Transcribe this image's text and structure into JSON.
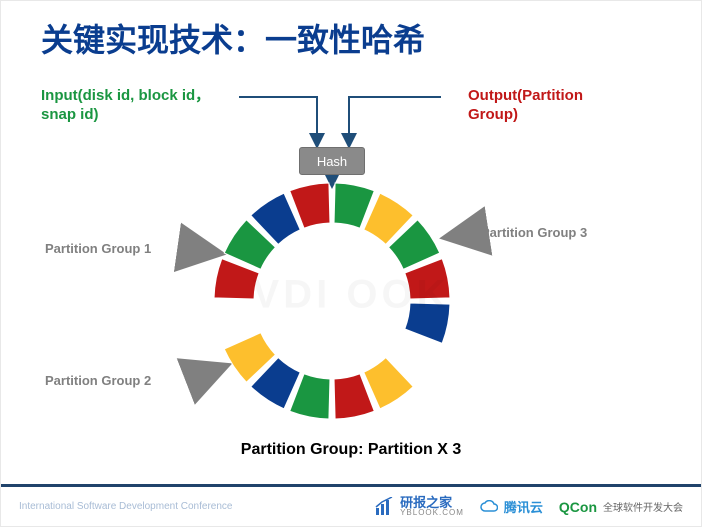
{
  "title": {
    "part1": "关键实现技术：",
    "part2": "一致性哈希",
    "color1": "#0a3d8f",
    "color2": "#0a3d8f",
    "fontsize": 32
  },
  "labels": {
    "input": "Input(disk id, block id，\nsnap id)",
    "input_color": "#1a9641",
    "output": "Output(Partition\nGroup)",
    "output_color": "#c11818",
    "fontsize": 15
  },
  "hash": {
    "text": "Hash",
    "bg": "#8a8a8a",
    "fg": "#ffffff",
    "border": "#6f6f6f"
  },
  "arrows": {
    "color": "#1f4e79",
    "head_fill": "#1f4e79"
  },
  "pg_arrows": {
    "color": "#808080",
    "head_fill": "#808080"
  },
  "ring": {
    "outer_r": 118,
    "inner_r": 78,
    "segments": 16,
    "gap_deg": 3,
    "colors": [
      "#1a9641",
      "#fdbf2d",
      "#1a9641",
      "#c11818",
      "#0a3d8f",
      "#ffffff",
      "#fdbf2d",
      "#c11818",
      "#1a9641",
      "#0a3d8f",
      "#fdbf2d",
      "#ffffff",
      "#c11818",
      "#1a9641",
      "#0a3d8f",
      "#c11818"
    ],
    "stroke": "#ffffff"
  },
  "partition_labels": {
    "pg1": "Partition Group 1",
    "pg2": "Partition Group 2",
    "pg3": "Partition Group 3",
    "color": "#808080",
    "fontsize": 13
  },
  "caption": {
    "text": "Partition Group: Partition X 3",
    "color": "#000000",
    "fontsize": 16
  },
  "footer": {
    "bg": "#20436b",
    "text_color": "#9fb5d1",
    "conference": "International Software Development Conference",
    "brand1": "研报之家",
    "brand1_sub": "YBLOOK.COM",
    "brand2": "腾讯云",
    "brand3": "QCon",
    "brand3_sub": "全球软件开发大会",
    "fontsize": 10
  },
  "watermark": "VDI OOK"
}
